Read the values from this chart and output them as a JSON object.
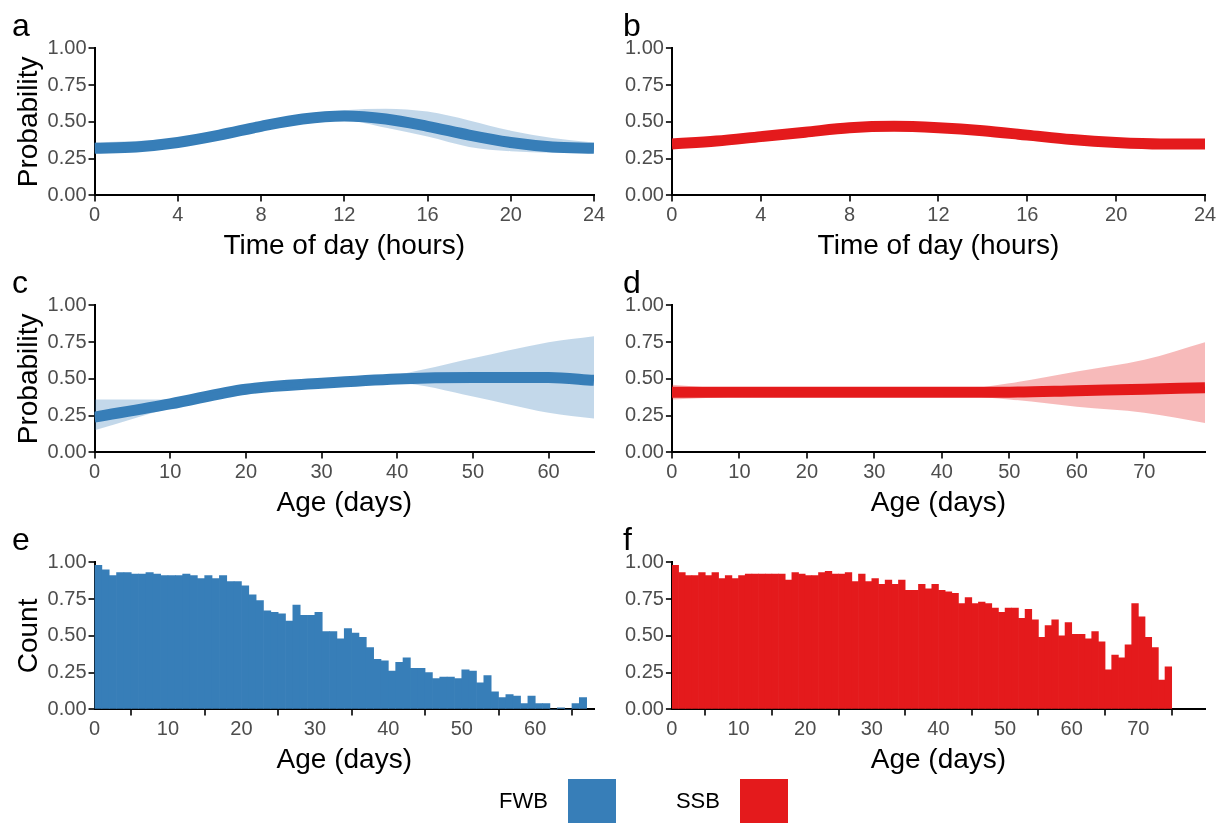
{
  "chart_data": [
    {
      "type": "line",
      "title": "a",
      "xlabel": "Time of day (hours)",
      "ylabel": "Probability",
      "x": [
        0,
        2,
        4,
        6,
        8,
        10,
        12,
        14,
        16,
        18,
        20,
        22,
        24
      ],
      "xlim": [
        0,
        24
      ],
      "xticks": [
        0,
        4,
        8,
        12,
        16,
        20,
        24
      ],
      "ylim": [
        0,
        1
      ],
      "yticks": [
        {
          "value": 0,
          "label": "0.00"
        },
        {
          "value": 0.25,
          "label": "0.25"
        },
        {
          "value": 0.5,
          "label": "0.50"
        },
        {
          "value": 0.75,
          "label": "0.75"
        },
        {
          "value": 1,
          "label": "1.00"
        }
      ],
      "series": [
        {
          "color": "#377eb8",
          "values": [
            0.32,
            0.33,
            0.36,
            0.41,
            0.47,
            0.52,
            0.54,
            0.52,
            0.47,
            0.41,
            0.36,
            0.33,
            0.32
          ],
          "lower": [
            0.29,
            0.3,
            0.33,
            0.38,
            0.44,
            0.49,
            0.51,
            0.46,
            0.4,
            0.33,
            0.3,
            0.29,
            0.29
          ],
          "upper": [
            0.36,
            0.37,
            0.39,
            0.44,
            0.5,
            0.55,
            0.58,
            0.59,
            0.57,
            0.51,
            0.44,
            0.39,
            0.36
          ]
        }
      ]
    },
    {
      "type": "line",
      "title": "b",
      "xlabel": "Time of day (hours)",
      "x": [
        0,
        2,
        4,
        6,
        8,
        10,
        12,
        14,
        16,
        18,
        20,
        22,
        24
      ],
      "xlim": [
        0,
        24
      ],
      "xticks": [
        0,
        4,
        8,
        12,
        16,
        20,
        24
      ],
      "ylim": [
        0,
        1
      ],
      "yticks": [
        {
          "value": 0,
          "label": "0.00"
        },
        {
          "value": 0.25,
          "label": "0.25"
        },
        {
          "value": 0.5,
          "label": "0.50"
        },
        {
          "value": 0.75,
          "label": "0.75"
        },
        {
          "value": 1,
          "label": "1.00"
        }
      ],
      "series": [
        {
          "color": "#e41a1c",
          "values": [
            0.35,
            0.37,
            0.4,
            0.43,
            0.46,
            0.47,
            0.46,
            0.44,
            0.41,
            0.38,
            0.36,
            0.35,
            0.35
          ]
        }
      ]
    },
    {
      "type": "line",
      "title": "c",
      "xlabel": "Age (days)",
      "ylabel": "Probability",
      "x": [
        0,
        10,
        20,
        30,
        40,
        50,
        60,
        66
      ],
      "xlim": [
        0,
        66
      ],
      "xticks": [
        0,
        10,
        20,
        30,
        40,
        50,
        60
      ],
      "ylim": [
        0,
        1
      ],
      "yticks": [
        {
          "value": 0,
          "label": "0.00"
        },
        {
          "value": 0.25,
          "label": "0.25"
        },
        {
          "value": 0.5,
          "label": "0.50"
        },
        {
          "value": 0.75,
          "label": "0.75"
        },
        {
          "value": 1,
          "label": "1.00"
        }
      ],
      "series": [
        {
          "color": "#377eb8",
          "values": [
            0.24,
            0.33,
            0.43,
            0.47,
            0.5,
            0.51,
            0.51,
            0.49
          ],
          "lower": [
            0.15,
            0.3,
            0.41,
            0.45,
            0.47,
            0.38,
            0.27,
            0.23
          ],
          "upper": [
            0.36,
            0.36,
            0.45,
            0.49,
            0.53,
            0.64,
            0.75,
            0.79
          ]
        }
      ]
    },
    {
      "type": "line",
      "title": "d",
      "xlabel": "Age (days)",
      "x": [
        0,
        10,
        20,
        30,
        40,
        50,
        60,
        70,
        79
      ],
      "xlim": [
        0,
        79
      ],
      "xticks": [
        0,
        10,
        20,
        30,
        40,
        50,
        60,
        70
      ],
      "ylim": [
        0,
        1
      ],
      "yticks": [
        {
          "value": 0,
          "label": "0.00"
        },
        {
          "value": 0.25,
          "label": "0.25"
        },
        {
          "value": 0.5,
          "label": "0.50"
        },
        {
          "value": 0.75,
          "label": "0.75"
        },
        {
          "value": 1,
          "label": "1.00"
        }
      ],
      "series": [
        {
          "color": "#e41a1c",
          "values": [
            0.41,
            0.41,
            0.41,
            0.41,
            0.41,
            0.41,
            0.42,
            0.43,
            0.44
          ],
          "lower": [
            0.36,
            0.38,
            0.39,
            0.39,
            0.39,
            0.36,
            0.31,
            0.27,
            0.2
          ],
          "upper": [
            0.46,
            0.43,
            0.42,
            0.42,
            0.42,
            0.47,
            0.55,
            0.63,
            0.75
          ]
        }
      ]
    },
    {
      "type": "histogram",
      "title": "e",
      "xlabel": "Age (days)",
      "ylabel": "Count",
      "legend": "bottom",
      "xlim": [
        0,
        68
      ],
      "xticks": [
        0,
        10,
        20,
        30,
        40,
        50,
        60
      ],
      "ylim": [
        0,
        1
      ],
      "yticks": [
        {
          "value": 0,
          "label": "0.00"
        },
        {
          "value": 0.25,
          "label": "0.25"
        },
        {
          "value": 0.5,
          "label": "0.50"
        },
        {
          "value": 0.75,
          "label": "0.75"
        },
        {
          "value": 1,
          "label": "1.00"
        }
      ],
      "bins": [
        0,
        1,
        2,
        3,
        4,
        5,
        6,
        7,
        8,
        9,
        10,
        11,
        12,
        13,
        14,
        15,
        16,
        17,
        18,
        19,
        20,
        21,
        22,
        23,
        24,
        25,
        26,
        27,
        28,
        29,
        30,
        31,
        32,
        33,
        34,
        35,
        36,
        37,
        38,
        39,
        40,
        41,
        42,
        43,
        44,
        45,
        46,
        47,
        48,
        49,
        50,
        51,
        52,
        53,
        54,
        55,
        56,
        57,
        58,
        59,
        60,
        61,
        62,
        63,
        64,
        65,
        66,
        67
      ],
      "series": [
        {
          "name": "FWB",
          "color": "#377eb8",
          "values": [
            0.98,
            0.95,
            0.91,
            0.93,
            0.93,
            0.92,
            0.92,
            0.93,
            0.92,
            0.91,
            0.91,
            0.91,
            0.92,
            0.91,
            0.89,
            0.91,
            0.89,
            0.91,
            0.87,
            0.87,
            0.84,
            0.78,
            0.74,
            0.67,
            0.66,
            0.65,
            0.6,
            0.71,
            0.64,
            0.64,
            0.66,
            0.53,
            0.53,
            0.48,
            0.55,
            0.52,
            0.49,
            0.42,
            0.34,
            0.33,
            0.26,
            0.32,
            0.35,
            0.28,
            0.28,
            0.25,
            0.21,
            0.22,
            0.22,
            0.21,
            0.27,
            0.26,
            0.18,
            0.23,
            0.12,
            0.08,
            0.1,
            0.09,
            0.04,
            0.09,
            0.04,
            0.04,
            0,
            0.01,
            0,
            0.04,
            0.08
          ]
        }
      ]
    },
    {
      "type": "histogram",
      "title": "f",
      "xlabel": "Age (days)",
      "legend": "bottom",
      "xlim": [
        0,
        80
      ],
      "xticks": [
        0,
        10,
        20,
        30,
        40,
        50,
        60,
        70
      ],
      "ylim": [
        0,
        1
      ],
      "yticks": [
        {
          "value": 0,
          "label": "0.00"
        },
        {
          "value": 0.25,
          "label": "0.25"
        },
        {
          "value": 0.5,
          "label": "0.50"
        },
        {
          "value": 0.75,
          "label": "0.75"
        },
        {
          "value": 1,
          "label": "1.00"
        }
      ],
      "bins": [
        0,
        1,
        2,
        3,
        4,
        5,
        6,
        7,
        8,
        9,
        10,
        11,
        12,
        13,
        14,
        15,
        16,
        17,
        18,
        19,
        20,
        21,
        22,
        23,
        24,
        25,
        26,
        27,
        28,
        29,
        30,
        31,
        32,
        33,
        34,
        35,
        36,
        37,
        38,
        39,
        40,
        41,
        42,
        43,
        44,
        45,
        46,
        47,
        48,
        49,
        50,
        51,
        52,
        53,
        54,
        55,
        56,
        57,
        58,
        59,
        60,
        61,
        62,
        63,
        64,
        65,
        66,
        67,
        68,
        69,
        70,
        71,
        72,
        73,
        74,
        75
      ],
      "series": [
        {
          "name": "SSB",
          "color": "#e41a1c",
          "values": [
            0.98,
            0.93,
            0.91,
            0.91,
            0.93,
            0.91,
            0.93,
            0.89,
            0.91,
            0.89,
            0.91,
            0.92,
            0.92,
            0.92,
            0.92,
            0.92,
            0.92,
            0.88,
            0.93,
            0.92,
            0.91,
            0.91,
            0.93,
            0.94,
            0.92,
            0.92,
            0.93,
            0.87,
            0.92,
            0.87,
            0.89,
            0.85,
            0.88,
            0.85,
            0.88,
            0.81,
            0.81,
            0.85,
            0.82,
            0.85,
            0.81,
            0.8,
            0.79,
            0.72,
            0.76,
            0.72,
            0.73,
            0.72,
            0.69,
            0.66,
            0.69,
            0.69,
            0.62,
            0.68,
            0.61,
            0.49,
            0.57,
            0.61,
            0.5,
            0.59,
            0.51,
            0.51,
            0.48,
            0.53,
            0.46,
            0.27,
            0.37,
            0.35,
            0.44,
            0.72,
            0.63,
            0.49,
            0.42,
            0.2,
            0.29
          ]
        }
      ]
    }
  ]
}
